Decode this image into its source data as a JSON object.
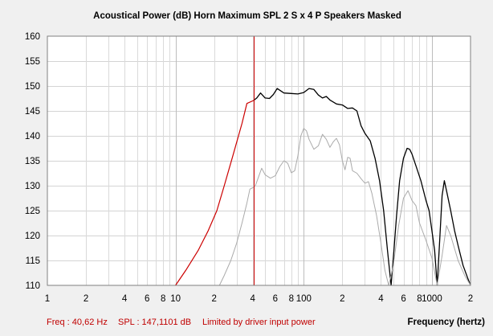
{
  "chart_data": {
    "type": "line",
    "title": "Acoustical Power (dB)   Horn   Maximum SPL   2 S x 4 P Speakers   Masked",
    "xlabel": "Frequency (hertz)",
    "ylabel": "",
    "x_scale": "log",
    "xlim": [
      1,
      2000
    ],
    "ylim": [
      110,
      160
    ],
    "grid": true,
    "y_ticks": [
      "160",
      "155",
      "150",
      "145",
      "140",
      "135",
      "130",
      "125",
      "120",
      "115",
      "110"
    ],
    "x_ticks": [
      {
        "x": 1,
        "label": "1"
      },
      {
        "x": 2,
        "label": "2"
      },
      {
        "x": 4,
        "label": "4"
      },
      {
        "x": 6,
        "label": "6"
      },
      {
        "x": 8,
        "label": "8"
      },
      {
        "x": 10,
        "label": "10"
      },
      {
        "x": 20,
        "label": "2"
      },
      {
        "x": 40,
        "label": "4"
      },
      {
        "x": 60,
        "label": "6"
      },
      {
        "x": 80,
        "label": "8"
      },
      {
        "x": 100,
        "label": "100"
      },
      {
        "x": 200,
        "label": "2"
      },
      {
        "x": 400,
        "label": "4"
      },
      {
        "x": 600,
        "label": "6"
      },
      {
        "x": 800,
        "label": "8"
      },
      {
        "x": 1000,
        "label": "1000"
      },
      {
        "x": 2000,
        "label": "2"
      }
    ],
    "cursor_x": 40.62,
    "series": [
      {
        "color": "#cc0000",
        "width": 1.2,
        "points": [
          [
            10,
            110
          ],
          [
            12,
            113
          ],
          [
            15,
            117
          ],
          [
            18,
            121
          ],
          [
            21,
            125
          ],
          [
            24,
            130
          ],
          [
            28,
            136
          ],
          [
            33,
            142.5
          ],
          [
            36,
            146.5
          ],
          [
            40.62,
            147.1
          ]
        ]
      },
      {
        "color": "#000000",
        "width": 1.3,
        "points": [
          [
            40.62,
            147.1
          ],
          [
            43,
            147.6
          ],
          [
            46,
            148.6
          ],
          [
            50,
            147.6
          ],
          [
            54,
            147.5
          ],
          [
            58,
            148.3
          ],
          [
            62,
            149.5
          ],
          [
            70,
            148.6
          ],
          [
            80,
            148.5
          ],
          [
            90,
            148.4
          ],
          [
            100,
            148.7
          ],
          [
            110,
            149.5
          ],
          [
            120,
            149.3
          ],
          [
            130,
            148.2
          ],
          [
            140,
            147.6
          ],
          [
            150,
            147.9
          ],
          [
            160,
            147.2
          ],
          [
            180,
            146.4
          ],
          [
            200,
            146.2
          ],
          [
            220,
            145.5
          ],
          [
            240,
            145.6
          ],
          [
            260,
            145
          ],
          [
            280,
            142
          ],
          [
            300,
            140.5
          ],
          [
            330,
            139
          ],
          [
            360,
            135.5
          ],
          [
            390,
            131
          ],
          [
            420,
            125
          ],
          [
            450,
            117
          ],
          [
            480,
            110
          ],
          [
            505,
            117
          ],
          [
            530,
            124
          ],
          [
            560,
            131
          ],
          [
            600,
            135.5
          ],
          [
            640,
            137.5
          ],
          [
            670,
            137.3
          ],
          [
            700,
            136.3
          ],
          [
            750,
            134
          ],
          [
            820,
            131
          ],
          [
            900,
            127
          ],
          [
            950,
            125
          ],
          [
            1000,
            121
          ],
          [
            1050,
            117
          ],
          [
            1100,
            110
          ],
          [
            1150,
            119
          ],
          [
            1200,
            128
          ],
          [
            1250,
            131
          ],
          [
            1300,
            129
          ],
          [
            1400,
            125
          ],
          [
            1500,
            121
          ],
          [
            1600,
            118
          ],
          [
            1750,
            114
          ],
          [
            1900,
            111.5
          ],
          [
            2000,
            110
          ]
        ]
      },
      {
        "color": "#aaaaaa",
        "width": 1,
        "points": [
          [
            22,
            110
          ],
          [
            24,
            112
          ],
          [
            27,
            115
          ],
          [
            30,
            118.5
          ],
          [
            33,
            122.5
          ],
          [
            36,
            126.5
          ],
          [
            38,
            129.3
          ],
          [
            40,
            129.6
          ],
          [
            42,
            130
          ],
          [
            44,
            131.5
          ],
          [
            47,
            133.5
          ],
          [
            50,
            132.2
          ],
          [
            55,
            131.5
          ],
          [
            60,
            132
          ],
          [
            65,
            133.8
          ],
          [
            70,
            135
          ],
          [
            75,
            134.5
          ],
          [
            80,
            132.6
          ],
          [
            85,
            133
          ],
          [
            90,
            136
          ],
          [
            95,
            140
          ],
          [
            100,
            141.5
          ],
          [
            105,
            141
          ],
          [
            110,
            139.3
          ],
          [
            120,
            137.3
          ],
          [
            130,
            138
          ],
          [
            140,
            140.3
          ],
          [
            150,
            139.3
          ],
          [
            160,
            137.7
          ],
          [
            170,
            138.8
          ],
          [
            180,
            139.5
          ],
          [
            190,
            138.2
          ],
          [
            200,
            135
          ],
          [
            210,
            133.2
          ],
          [
            220,
            135.7
          ],
          [
            230,
            135.5
          ],
          [
            240,
            133
          ],
          [
            260,
            132.5
          ],
          [
            280,
            131.4
          ],
          [
            300,
            130.5
          ],
          [
            320,
            130.8
          ],
          [
            340,
            128.5
          ],
          [
            370,
            124
          ],
          [
            400,
            118.5
          ],
          [
            430,
            113
          ],
          [
            460,
            110
          ],
          [
            500,
            114
          ],
          [
            550,
            122
          ],
          [
            600,
            127.5
          ],
          [
            650,
            129
          ],
          [
            700,
            127
          ],
          [
            750,
            126
          ],
          [
            800,
            122.5
          ],
          [
            900,
            119
          ],
          [
            1000,
            115.5
          ],
          [
            1100,
            110
          ],
          [
            1200,
            116
          ],
          [
            1300,
            122
          ],
          [
            1400,
            120
          ],
          [
            1600,
            115
          ],
          [
            1800,
            112
          ],
          [
            2000,
            110
          ]
        ]
      }
    ]
  },
  "status": {
    "freq": "Freq : 40,62 Hz",
    "spl": "SPL : 147,1101 dB",
    "message": "Limited by driver input power"
  }
}
